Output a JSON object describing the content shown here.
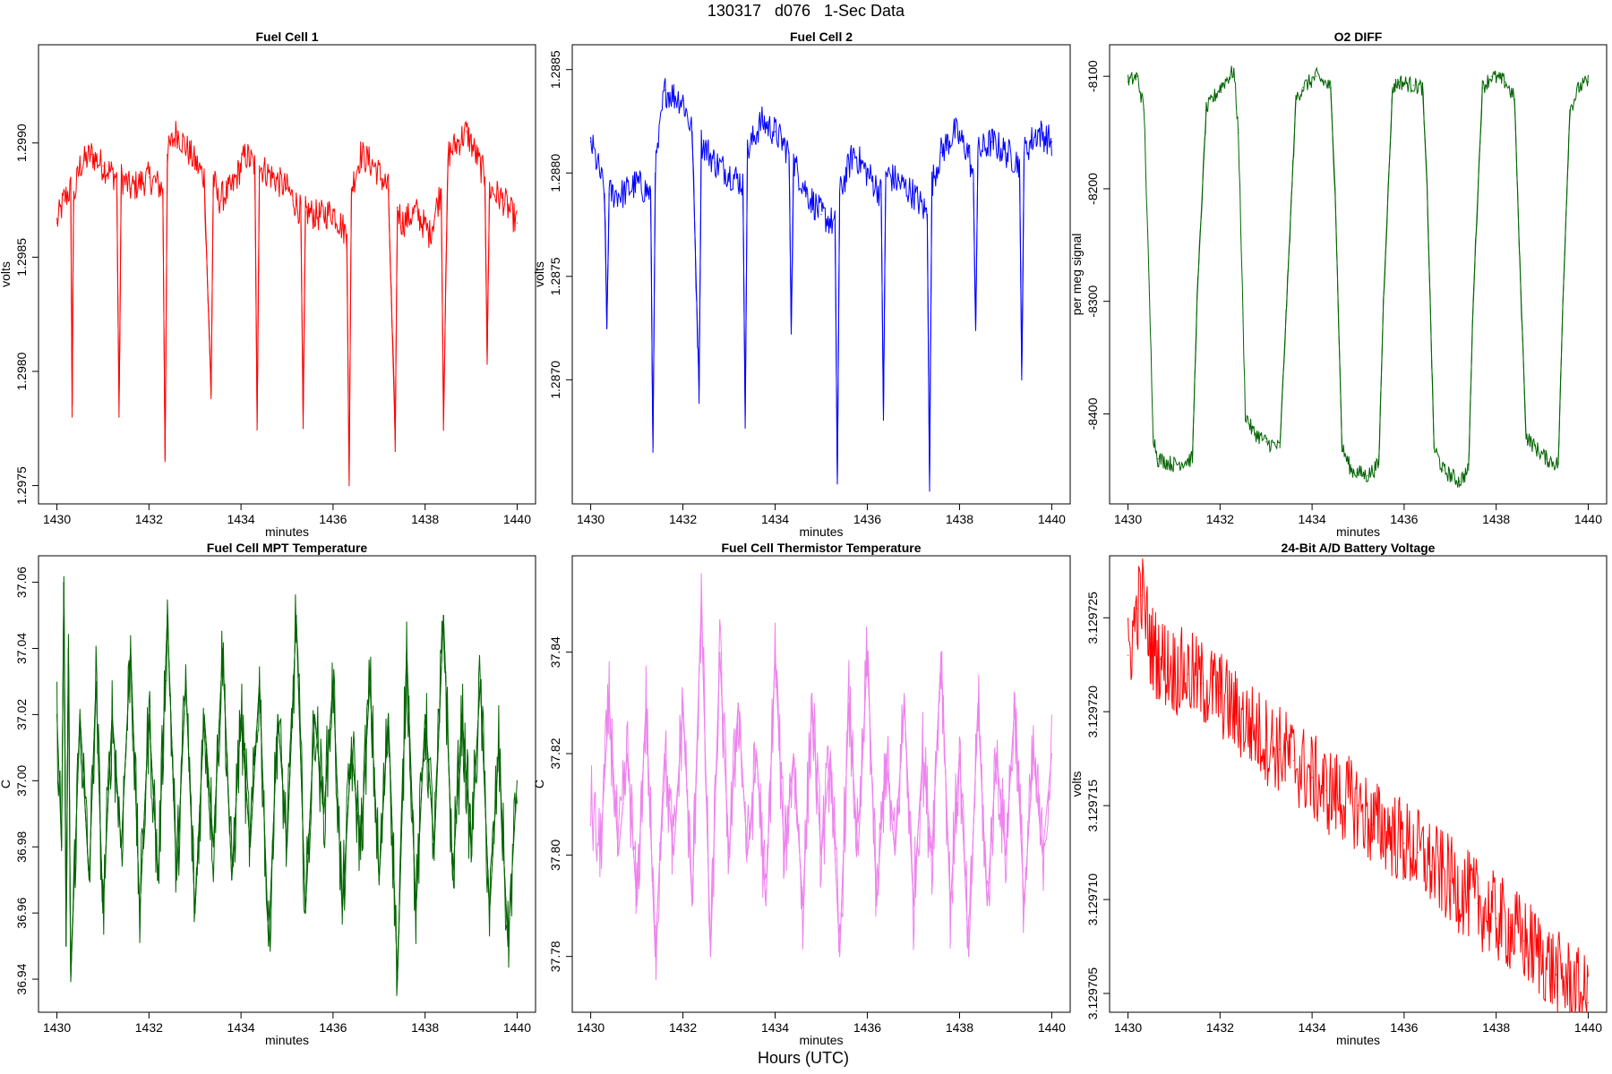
{
  "figure": {
    "title": "130317   d076   1-Sec Data",
    "xlabel": "Hours (UTC)"
  },
  "chart_data": [
    {
      "type": "line",
      "title": "Fuel Cell 1",
      "xlabel": "minutes",
      "ylabel": "volts",
      "color": "#ff0000",
      "xlim": [
        1429.6,
        1440.4
      ],
      "ylim": [
        1.29742,
        1.29943
      ],
      "xticks": [
        1430,
        1432,
        1434,
        1436,
        1438,
        1440
      ],
      "yticks": [
        1.2975,
        1.298,
        1.2985,
        1.299
      ],
      "ytick_labels": [
        "1.2975",
        "1.2980",
        "1.2985",
        "1.2990"
      ],
      "grid": false,
      "series": [
        {
          "x": [
            1430.0,
            1430.15,
            1430.3,
            1430.33,
            1430.36,
            1430.5,
            1430.75,
            1431.0,
            1431.3,
            1431.35,
            1431.4,
            1431.6,
            1432.0,
            1432.3,
            1432.35,
            1432.4,
            1432.6,
            1432.9,
            1433.2,
            1433.35,
            1433.4,
            1433.5,
            1433.8,
            1434.1,
            1434.3,
            1434.35,
            1434.4,
            1434.7,
            1435.0,
            1435.3,
            1435.35,
            1435.4,
            1435.7,
            1436.0,
            1436.3,
            1436.35,
            1436.4,
            1436.6,
            1436.9,
            1437.2,
            1437.35,
            1437.4,
            1437.5,
            1437.8,
            1438.1,
            1438.35,
            1438.4,
            1438.5,
            1438.9,
            1439.2,
            1439.3,
            1439.35,
            1439.4,
            1439.7,
            1440.0
          ],
          "y": [
            1.29865,
            1.29875,
            1.2988,
            1.2978,
            1.29875,
            1.2989,
            1.29895,
            1.2989,
            1.29885,
            1.2978,
            1.29885,
            1.2988,
            1.29885,
            1.2988,
            1.29762,
            1.29895,
            1.29905,
            1.29895,
            1.29885,
            1.2979,
            1.29885,
            1.29875,
            1.2988,
            1.29895,
            1.2989,
            1.29778,
            1.2989,
            1.29885,
            1.2988,
            1.2987,
            1.29775,
            1.2987,
            1.29868,
            1.2987,
            1.2986,
            1.2975,
            1.2988,
            1.29895,
            1.2989,
            1.2988,
            1.2977,
            1.29872,
            1.29865,
            1.2987,
            1.2986,
            1.2988,
            1.2978,
            1.29895,
            1.29905,
            1.2989,
            1.29885,
            1.29805,
            1.2988,
            1.29875,
            1.29865
          ]
        }
      ]
    },
    {
      "type": "line",
      "title": "Fuel Cell 2",
      "xlabel": "minutes",
      "ylabel": "volts",
      "color": "#0000ff",
      "xlim": [
        1429.6,
        1440.4
      ],
      "ylim": [
        1.2864,
        1.28862
      ],
      "xticks": [
        1430,
        1432,
        1434,
        1436,
        1438,
        1440
      ],
      "yticks": [
        1.287,
        1.2875,
        1.288,
        1.2885
      ],
      "ytick_labels": [
        "1.2870",
        "1.2875",
        "1.2880",
        "1.2885"
      ],
      "grid": false,
      "series": [
        {
          "x": [
            1430.0,
            1430.2,
            1430.3,
            1430.35,
            1430.4,
            1430.7,
            1431.0,
            1431.3,
            1431.35,
            1431.4,
            1431.6,
            1432.0,
            1432.2,
            1432.35,
            1432.4,
            1432.7,
            1433.0,
            1433.3,
            1433.35,
            1433.4,
            1433.7,
            1434.0,
            1434.3,
            1434.35,
            1434.4,
            1434.7,
            1435.0,
            1435.3,
            1435.35,
            1435.4,
            1435.7,
            1436.0,
            1436.3,
            1436.35,
            1436.4,
            1436.7,
            1437.0,
            1437.3,
            1437.35,
            1437.4,
            1437.6,
            1437.9,
            1438.2,
            1438.3,
            1438.35,
            1438.4,
            1438.7,
            1439.0,
            1439.3,
            1439.35,
            1439.4,
            1439.7,
            1440.0
          ],
          "y": [
            1.28815,
            1.288,
            1.2879,
            1.28725,
            1.2879,
            1.2879,
            1.28795,
            1.2879,
            1.28665,
            1.288,
            1.2884,
            1.28835,
            1.2882,
            1.28695,
            1.28815,
            1.28805,
            1.288,
            1.28795,
            1.28683,
            1.2881,
            1.28825,
            1.2882,
            1.2881,
            1.28725,
            1.28805,
            1.2879,
            1.2878,
            1.28775,
            1.2865,
            1.2879,
            1.2881,
            1.288,
            1.2879,
            1.28683,
            1.288,
            1.28795,
            1.2879,
            1.2878,
            1.2865,
            1.28795,
            1.2881,
            1.2882,
            1.2881,
            1.28795,
            1.28725,
            1.2881,
            1.28815,
            1.2881,
            1.28805,
            1.287,
            1.2881,
            1.2882,
            1.28815
          ]
        }
      ]
    },
    {
      "type": "line",
      "title": "O2 DIFF",
      "xlabel": "minutes",
      "ylabel": "per meg signal",
      "color": "#006400",
      "xlim": [
        1429.6,
        1440.4
      ],
      "ylim": [
        -8480,
        -8072
      ],
      "xticks": [
        1430,
        1432,
        1434,
        1436,
        1438,
        1440
      ],
      "yticks": [
        -8100,
        -8200,
        -8300,
        -8400
      ],
      "ytick_labels": [
        "-8100",
        "-8200",
        "-8300",
        "-8400"
      ],
      "grid": false,
      "series": [
        {
          "x": [
            1430.0,
            1430.2,
            1430.35,
            1430.55,
            1430.65,
            1431.0,
            1431.4,
            1431.5,
            1431.7,
            1432.0,
            1432.3,
            1432.4,
            1432.55,
            1432.7,
            1433.0,
            1433.3,
            1433.45,
            1433.65,
            1433.8,
            1434.1,
            1434.4,
            1434.5,
            1434.65,
            1434.85,
            1435.2,
            1435.45,
            1435.55,
            1435.75,
            1435.9,
            1436.2,
            1436.4,
            1436.5,
            1436.65,
            1436.85,
            1437.2,
            1437.4,
            1437.5,
            1437.7,
            1437.9,
            1438.2,
            1438.4,
            1438.5,
            1438.65,
            1438.85,
            1439.1,
            1439.35,
            1439.45,
            1439.6,
            1439.8,
            1440.0
          ],
          "y": [
            -8105,
            -8100,
            -8130,
            -8420,
            -8440,
            -8445,
            -8440,
            -8300,
            -8130,
            -8110,
            -8095,
            -8150,
            -8400,
            -8415,
            -8425,
            -8430,
            -8300,
            -8120,
            -8110,
            -8100,
            -8110,
            -8200,
            -8430,
            -8450,
            -8455,
            -8445,
            -8300,
            -8110,
            -8105,
            -8108,
            -8110,
            -8200,
            -8430,
            -8450,
            -8460,
            -8450,
            -8300,
            -8110,
            -8100,
            -8105,
            -8120,
            -8250,
            -8420,
            -8430,
            -8440,
            -8445,
            -8300,
            -8130,
            -8110,
            -8105
          ]
        }
      ]
    },
    {
      "type": "line",
      "title": "Fuel Cell MPT Temperature",
      "xlabel": "minutes",
      "ylabel": "C",
      "color": "#006400",
      "xlim": [
        1429.6,
        1440.4
      ],
      "ylim": [
        36.93,
        37.068
      ],
      "xticks": [
        1430,
        1432,
        1434,
        1436,
        1438,
        1440
      ],
      "yticks": [
        36.94,
        36.96,
        36.98,
        37.0,
        37.02,
        37.04,
        37.06
      ],
      "ytick_labels": [
        "36.94",
        "36.96",
        "36.98",
        "37.00",
        "37.02",
        "37.04",
        "37.06"
      ],
      "grid": false,
      "series": [
        {
          "x": [
            1430.0,
            1430.1,
            1430.15,
            1430.2,
            1430.25,
            1430.3,
            1430.5,
            1430.7,
            1430.85,
            1431.0,
            1431.2,
            1431.4,
            1431.6,
            1431.8,
            1432.0,
            1432.2,
            1432.4,
            1432.6,
            1432.8,
            1433.0,
            1433.2,
            1433.4,
            1433.6,
            1433.8,
            1434.0,
            1434.2,
            1434.4,
            1434.6,
            1434.8,
            1435.0,
            1435.2,
            1435.4,
            1435.6,
            1435.8,
            1436.0,
            1436.2,
            1436.4,
            1436.6,
            1436.8,
            1437.0,
            1437.2,
            1437.4,
            1437.6,
            1437.8,
            1438.0,
            1438.2,
            1438.4,
            1438.6,
            1438.8,
            1439.0,
            1439.2,
            1439.4,
            1439.6,
            1439.8,
            1440.0
          ],
          "y": [
            37.02,
            36.98,
            37.06,
            36.95,
            37.04,
            36.94,
            37.02,
            36.97,
            37.03,
            36.96,
            37.02,
            36.98,
            37.04,
            36.96,
            37.02,
            36.97,
            37.05,
            36.97,
            37.03,
            36.96,
            37.02,
            36.98,
            37.04,
            36.97,
            37.02,
            36.98,
            37.03,
            36.95,
            37.02,
            36.98,
            37.05,
            36.96,
            37.02,
            36.99,
            37.03,
            36.96,
            37.01,
            36.98,
            37.03,
            36.97,
            37.02,
            36.94,
            37.04,
            36.96,
            37.02,
            36.98,
            37.05,
            36.97,
            37.02,
            36.98,
            37.03,
            36.96,
            37.01,
            36.95,
            37.0
          ]
        }
      ]
    },
    {
      "type": "line",
      "title": "Fuel Cell Thermistor Temperature",
      "xlabel": "minutes",
      "ylabel": "C",
      "color": "#ee82ee",
      "xlim": [
        1429.6,
        1440.4
      ],
      "ylim": [
        37.769,
        37.859
      ],
      "xticks": [
        1430,
        1432,
        1434,
        1436,
        1438,
        1440
      ],
      "yticks": [
        37.78,
        37.8,
        37.82,
        37.84
      ],
      "ytick_labels": [
        "37.78",
        "37.80",
        "37.82",
        "37.84"
      ],
      "grid": false,
      "series": [
        {
          "x": [
            1430.0,
            1430.2,
            1430.4,
            1430.6,
            1430.8,
            1431.0,
            1431.2,
            1431.4,
            1431.6,
            1431.8,
            1432.0,
            1432.2,
            1432.4,
            1432.6,
            1432.8,
            1433.0,
            1433.2,
            1433.4,
            1433.6,
            1433.8,
            1434.0,
            1434.2,
            1434.4,
            1434.6,
            1434.8,
            1435.0,
            1435.2,
            1435.4,
            1435.6,
            1435.8,
            1436.0,
            1436.2,
            1436.4,
            1436.6,
            1436.8,
            1437.0,
            1437.2,
            1437.4,
            1437.6,
            1437.8,
            1438.0,
            1438.2,
            1438.4,
            1438.6,
            1438.8,
            1439.0,
            1439.2,
            1439.4,
            1439.6,
            1439.8,
            1440.0
          ],
          "y": [
            37.81,
            37.8,
            37.83,
            37.8,
            37.82,
            37.79,
            37.83,
            37.78,
            37.82,
            37.8,
            37.83,
            37.79,
            37.85,
            37.78,
            37.84,
            37.8,
            37.83,
            37.8,
            37.82,
            37.79,
            37.84,
            37.8,
            37.82,
            37.79,
            37.83,
            37.8,
            37.82,
            37.78,
            37.83,
            37.8,
            37.84,
            37.79,
            37.82,
            37.8,
            37.83,
            37.79,
            37.82,
            37.8,
            37.84,
            37.79,
            37.82,
            37.78,
            37.83,
            37.79,
            37.82,
            37.8,
            37.83,
            37.79,
            37.82,
            37.8,
            37.82
          ]
        }
      ]
    },
    {
      "type": "line",
      "title": "24-Bit A/D Battery Voltage",
      "xlabel": "minutes",
      "ylabel": "volts",
      "color": "#ff0000",
      "xlim": [
        1429.6,
        1440.4
      ],
      "ylim": [
        3.129704,
        3.1297283
      ],
      "xticks": [
        1430,
        1432,
        1434,
        1436,
        1438,
        1440
      ],
      "yticks": [
        3.129705,
        3.12971,
        3.129715,
        3.12972,
        3.129725
      ],
      "ytick_labels": [
        "3.129705",
        "3.129710",
        "3.129715",
        "3.129720",
        "3.129725"
      ],
      "grid": false,
      "series": [
        {
          "x": [
            1430.0,
            1430.1,
            1430.2,
            1430.3,
            1430.5,
            1430.7,
            1431.0,
            1431.3,
            1431.6,
            1432.0,
            1432.3,
            1432.6,
            1433.0,
            1433.3,
            1433.6,
            1434.0,
            1434.3,
            1434.6,
            1435.0,
            1435.3,
            1435.6,
            1436.0,
            1436.3,
            1436.6,
            1437.0,
            1437.3,
            1437.6,
            1438.0,
            1438.3,
            1438.6,
            1439.0,
            1439.3,
            1439.6,
            1439.8,
            1440.0
          ],
          "y": [
            3.129723,
            3.129724,
            3.1297255,
            3.1297262,
            3.1297235,
            3.1297228,
            3.1297222,
            3.129722,
            3.1297215,
            3.129721,
            3.12972,
            3.1297194,
            3.1297185,
            3.129718,
            3.1297174,
            3.1297165,
            3.1297158,
            3.1297155,
            3.129715,
            3.129714,
            3.1297138,
            3.129713,
            3.1297125,
            3.1297118,
            3.129711,
            3.1297104,
            3.1297098,
            3.129709,
            3.1297085,
            3.1297078,
            3.129707,
            3.129706,
            3.1297055,
            3.129705,
            3.1297045
          ]
        }
      ]
    }
  ]
}
